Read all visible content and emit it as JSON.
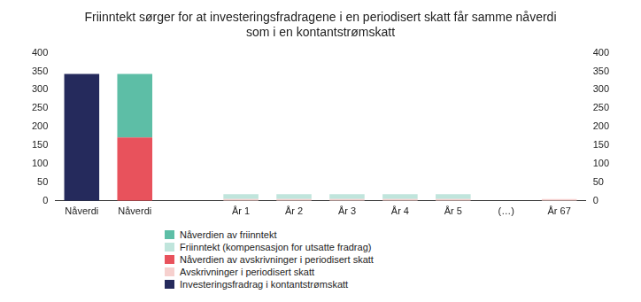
{
  "chart_data": {
    "type": "bar",
    "title": [
      "Friinntekt sørger for at investeringsfradragene i en periodisert skatt får samme nåverdi",
      "som i en kontantstrømskatt"
    ],
    "categories": [
      "Nåverdi",
      "Nåverdi",
      null,
      "År 1",
      "År 2",
      "År 3",
      "År 4",
      "År 5",
      "(…)",
      "År 67"
    ],
    "series": [
      {
        "name": "Nåverdien av friinntekt",
        "color": "#5dbea6",
        "values": [
          null,
          172,
          null,
          null,
          null,
          null,
          null,
          null,
          null,
          null
        ]
      },
      {
        "name": "Friinntekt (kompensasjon for utsatte fradrag)",
        "color": "#c0e5dc",
        "values": [
          null,
          null,
          null,
          13,
          13,
          13,
          13,
          13,
          null,
          null
        ]
      },
      {
        "name": "Nåverdien av avskrivninger i periodisert skatt",
        "color": "#e8525c",
        "values": [
          null,
          171,
          null,
          null,
          null,
          null,
          null,
          null,
          null,
          null
        ]
      },
      {
        "name": "Avskrivninger i periodisert skatt",
        "color": "#f6d0ce",
        "values": [
          null,
          null,
          null,
          5,
          5,
          5,
          5,
          5,
          null,
          5
        ]
      },
      {
        "name": "Investeringsfradrag i kontantstrømskatt",
        "color": "#252a5c",
        "values": [
          343,
          null,
          null,
          null,
          null,
          null,
          null,
          null,
          null,
          null
        ]
      }
    ],
    "ylim": [
      0,
      400
    ],
    "yticks": [
      0,
      50,
      100,
      150,
      200,
      250,
      300,
      350,
      400
    ],
    "y2lim": [
      0,
      400
    ],
    "y2ticks": [
      0,
      50,
      100,
      150,
      200,
      250,
      300,
      350,
      400
    ],
    "stacked": true,
    "grid": false,
    "legend": "bottom"
  }
}
